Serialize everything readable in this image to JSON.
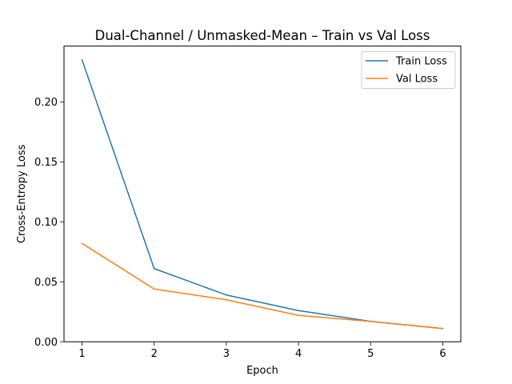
{
  "chart_data": {
    "type": "line",
    "title": "Dual-Channel / Unmasked-Mean – Train vs Val Loss",
    "xlabel": "Epoch",
    "ylabel": "Cross-Entropy Loss",
    "x": [
      1,
      2,
      3,
      4,
      5,
      6
    ],
    "xticks": [
      1,
      2,
      3,
      4,
      5,
      6
    ],
    "xtick_labels": [
      "1",
      "2",
      "3",
      "4",
      "5",
      "6"
    ],
    "xlim": [
      0.75,
      6.25
    ],
    "yticks": [
      0,
      0.05,
      0.1,
      0.15,
      0.2
    ],
    "ytick_labels": [
      "0.00",
      "0.05",
      "0.10",
      "0.15",
      "0.20"
    ],
    "ylim": [
      0,
      0.2465
    ],
    "grid": false,
    "legend_position": "top-right",
    "series": [
      {
        "name": "Train Loss",
        "color": "#1f77b4",
        "values": [
          0.235,
          0.061,
          0.039,
          0.026,
          0.017,
          0.011
        ]
      },
      {
        "name": "Val Loss",
        "color": "#ff7f0e",
        "values": [
          0.082,
          0.044,
          0.035,
          0.022,
          0.017,
          0.011
        ]
      }
    ]
  }
}
